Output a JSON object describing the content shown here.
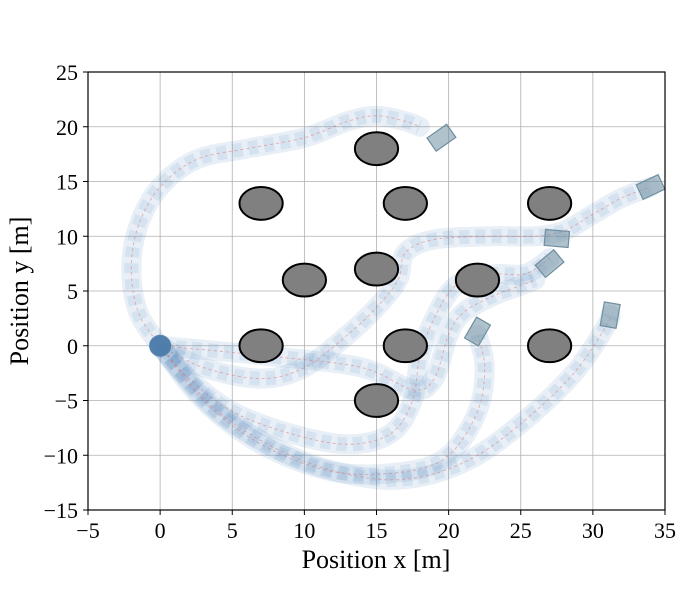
{
  "chart_data": {
    "type": "scatter",
    "title": "",
    "xlabel": "Position x [m]",
    "ylabel": "Position y [m]",
    "xlim": [
      -5,
      35
    ],
    "ylim": [
      -15,
      25
    ],
    "xticks": [
      -5,
      0,
      5,
      10,
      15,
      20,
      25,
      30,
      35
    ],
    "yticks": [
      -15,
      -10,
      -5,
      0,
      5,
      10,
      15,
      20,
      25
    ],
    "grid": true,
    "colors": {
      "obstacle_fill": "#808080",
      "obstacle_edge": "#000000",
      "trajectory_band": "#4f81bd",
      "vehicle": "#6f8fa0",
      "reference_line": "#e57373"
    },
    "obstacles": [
      {
        "x": 15,
        "y": 18,
        "rx": 1.5,
        "ry": 1.5
      },
      {
        "x": 7,
        "y": 13,
        "rx": 1.5,
        "ry": 1.5
      },
      {
        "x": 17,
        "y": 13,
        "rx": 1.5,
        "ry": 1.5
      },
      {
        "x": 27,
        "y": 13,
        "rx": 1.5,
        "ry": 1.5
      },
      {
        "x": 10,
        "y": 6,
        "rx": 1.5,
        "ry": 1.5
      },
      {
        "x": 15,
        "y": 7,
        "rx": 1.5,
        "ry": 1.5
      },
      {
        "x": 22,
        "y": 6,
        "rx": 1.5,
        "ry": 1.5
      },
      {
        "x": 7,
        "y": 0,
        "rx": 1.5,
        "ry": 1.5
      },
      {
        "x": 17,
        "y": 0,
        "rx": 1.5,
        "ry": 1.5
      },
      {
        "x": 27,
        "y": 0,
        "rx": 1.5,
        "ry": 1.5
      },
      {
        "x": 15,
        "y": -5,
        "rx": 1.5,
        "ry": 1.5
      }
    ],
    "series": [
      {
        "points": [
          [
            0,
            0
          ],
          [
            -1.5,
            3
          ],
          [
            -2,
            7
          ],
          [
            -1.5,
            11
          ],
          [
            0,
            14.5
          ],
          [
            2.5,
            17
          ],
          [
            6,
            18
          ],
          [
            10,
            19
          ],
          [
            13,
            20.5
          ],
          [
            15,
            21
          ],
          [
            17,
            20.5
          ],
          [
            18,
            20
          ]
        ],
        "end": {
          "x": 19.5,
          "y": 19,
          "angle": -35
        }
      },
      {
        "points": [
          [
            0,
            0
          ],
          [
            3,
            -2
          ],
          [
            7,
            -3
          ],
          [
            10,
            -2
          ],
          [
            13,
            1
          ],
          [
            15,
            3.5
          ],
          [
            16.5,
            6
          ],
          [
            17,
            8.5
          ],
          [
            19,
            9.7
          ],
          [
            23,
            10
          ],
          [
            26,
            10
          ],
          [
            28,
            10.5
          ],
          [
            30,
            12
          ],
          [
            32,
            13.5
          ],
          [
            34,
            14.5
          ]
        ],
        "end": {
          "x": 34,
          "y": 14.5,
          "angle": -25
        }
      },
      {
        "points": [
          [
            0,
            0
          ],
          [
            2,
            -3
          ],
          [
            5,
            -6
          ],
          [
            9,
            -8
          ],
          [
            13,
            -9
          ],
          [
            16,
            -8
          ],
          [
            17.5,
            -5
          ],
          [
            18,
            -1
          ],
          [
            19,
            2.5
          ],
          [
            20.5,
            5.5
          ],
          [
            23,
            6.5
          ],
          [
            25,
            6.5
          ],
          [
            26,
            7
          ],
          [
            27,
            8
          ]
        ],
        "end": {
          "x": 27,
          "y": 7.5,
          "angle": -40
        }
      },
      {
        "points": [
          [
            0,
            0
          ],
          [
            3,
            -5
          ],
          [
            7,
            -9
          ],
          [
            12,
            -11.5
          ],
          [
            17,
            -11.5
          ],
          [
            20,
            -10
          ],
          [
            22,
            -6
          ],
          [
            22.5,
            -2
          ],
          [
            22,
            1
          ]
        ],
        "end": {
          "x": 22,
          "y": 1.3,
          "angle": -60
        }
      },
      {
        "points": [
          [
            0,
            0
          ],
          [
            4,
            -6
          ],
          [
            9,
            -10
          ],
          [
            14,
            -12
          ],
          [
            18,
            -12
          ],
          [
            22,
            -10
          ],
          [
            26,
            -6
          ],
          [
            29,
            -2
          ],
          [
            31,
            2
          ],
          [
            31.2,
            2.8
          ]
        ],
        "end": {
          "x": 31.2,
          "y": 2.8,
          "angle": -80
        }
      },
      {
        "points": [
          [
            0,
            0
          ],
          [
            8,
            -1
          ],
          [
            14,
            -2
          ],
          [
            17.5,
            -4
          ],
          [
            19,
            -3
          ],
          [
            20,
            1
          ],
          [
            21,
            3
          ],
          [
            23,
            4.5
          ],
          [
            25,
            5.5
          ],
          [
            26,
            6
          ]
        ],
        "end": {
          "x": 27.5,
          "y": 9.8,
          "angle": 5
        }
      }
    ]
  }
}
